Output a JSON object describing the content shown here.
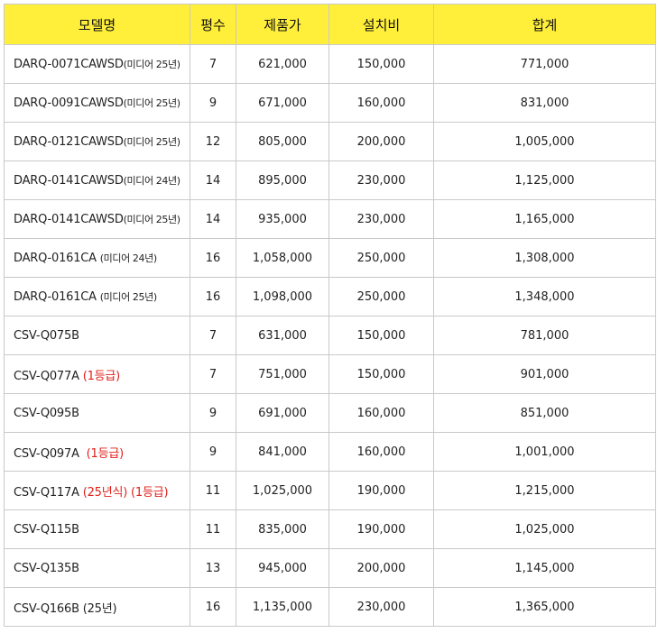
{
  "table": {
    "headers": [
      "모델명",
      "평수",
      "제품가",
      "설치비",
      "합계"
    ],
    "colors": {
      "header_bg": "#ffef3a",
      "highlight_text": "#e0211b",
      "border": "#c9c9c9"
    },
    "rows": [
      {
        "model": "DARQ-0071CAWSD",
        "note": "(미디어 25년)",
        "tag": "",
        "size": "7",
        "price": "621,000",
        "install": "150,000",
        "total": "771,000"
      },
      {
        "model": "DARQ-0091CAWSD",
        "note": "(미디어 25년)",
        "tag": "",
        "size": "9",
        "price": "671,000",
        "install": "160,000",
        "total": "831,000"
      },
      {
        "model": "DARQ-0121CAWSD",
        "note": "(미디어 25년)",
        "tag": "",
        "size": "12",
        "price": "805,000",
        "install": "200,000",
        "total": "1,005,000"
      },
      {
        "model": "DARQ-0141CAWSD",
        "note": "(미디어 24년)",
        "tag": "",
        "size": "14",
        "price": "895,000",
        "install": "230,000",
        "total": "1,125,000"
      },
      {
        "model": "DARQ-0141CAWSD",
        "note": "(미디어 25년)",
        "tag": "",
        "size": "14",
        "price": "935,000",
        "install": "230,000",
        "total": "1,165,000"
      },
      {
        "model": "DARQ-0161CA ",
        "note": "(미디어 24년)",
        "tag": "",
        "size": "16",
        "price": "1,058,000",
        "install": "250,000",
        "total": "1,308,000"
      },
      {
        "model": "DARQ-0161CA ",
        "note": "(미디어 25년)",
        "tag": "",
        "size": "16",
        "price": "1,098,000",
        "install": "250,000",
        "total": "1,348,000"
      },
      {
        "model": "CSV-Q075B",
        "note": "",
        "tag": "",
        "size": "7",
        "price": "631,000",
        "install": "150,000",
        "total": "781,000"
      },
      {
        "model": "CSV-Q077A ",
        "note": "",
        "tag": "(1등급)",
        "size": "7",
        "price": "751,000",
        "install": "150,000",
        "total": "901,000"
      },
      {
        "model": "CSV-Q095B",
        "note": "",
        "tag": "",
        "size": "9",
        "price": "691,000",
        "install": "160,000",
        "total": "851,000"
      },
      {
        "model": "CSV-Q097A  ",
        "note": "",
        "tag": "(1등급)",
        "size": "9",
        "price": "841,000",
        "install": "160,000",
        "total": "1,001,000"
      },
      {
        "model": "CSV-Q117A ",
        "note": "",
        "tag": "(25년식) (1등급)",
        "size": "11",
        "price": "1,025,000",
        "install": "190,000",
        "total": "1,215,000"
      },
      {
        "model": "CSV-Q115B",
        "note": "",
        "tag": "",
        "size": "11",
        "price": "835,000",
        "install": "190,000",
        "total": "1,025,000"
      },
      {
        "model": "CSV-Q135B",
        "note": "",
        "tag": "",
        "size": "13",
        "price": "945,000",
        "install": "200,000",
        "total": "1,145,000"
      },
      {
        "model": "CSV-Q166B (25년)",
        "note": "",
        "tag": "",
        "size": "16",
        "price": "1,135,000",
        "install": "230,000",
        "total": "1,365,000"
      }
    ]
  }
}
